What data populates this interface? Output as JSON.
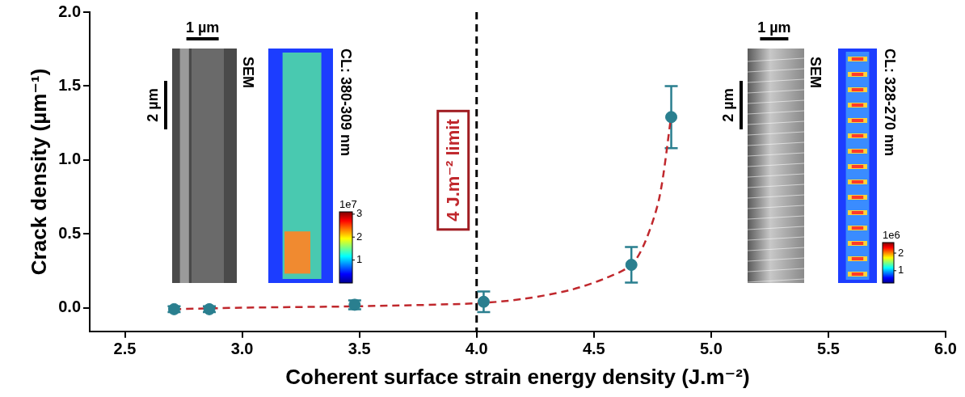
{
  "chart_data": {
    "type": "scatter",
    "x_label": "Coherent surface strain energy density (J.m⁻²)",
    "y_label": "Crack density (µm⁻¹)",
    "xlim": [
      2.35,
      6.0
    ],
    "xticks": [
      2.5,
      {
        "value": 3.0,
        "label": "3.0"
      },
      3.5,
      {
        "value": 4.0,
        "label": "4.0"
      },
      4.5,
      {
        "value": 5.0,
        "label": "5.0"
      },
      5.5,
      {
        "value": 6.0,
        "label": "6.0"
      }
    ],
    "ylim": [
      -0.16,
      2.0
    ],
    "yticks": [
      {
        "value": 0.0,
        "label": "0.0"
      },
      0.5,
      {
        "value": 1.0,
        "label": "1.0"
      },
      1.5,
      {
        "value": 2.0,
        "label": "2.0"
      }
    ],
    "grid": false,
    "series": [
      {
        "type": "scatter",
        "color": "#2a7f8f",
        "marker": "circle",
        "x": [
          2.71,
          2.86,
          3.48,
          4.03,
          4.66,
          4.83
        ],
        "values": [
          -0.01,
          -0.01,
          0.02,
          0.04,
          0.29,
          1.29
        ],
        "y_errors": [
          0.02,
          0.02,
          0.03,
          0.07,
          0.12,
          0.21
        ]
      },
      {
        "type": "line",
        "color": "#c0282d",
        "line_style": "dashed",
        "x": [
          2.71,
          3.0,
          3.5,
          4.0,
          4.2,
          4.4,
          4.55,
          4.66,
          4.72,
          4.78,
          4.83
        ],
        "values": [
          -0.01,
          0.0,
          0.01,
          0.03,
          0.06,
          0.12,
          0.2,
          0.29,
          0.45,
          0.75,
          1.3
        ]
      }
    ],
    "vlines": [
      {
        "x": 4.0,
        "color": "#000000",
        "line_style": "dashed"
      }
    ],
    "annotations": [
      {
        "text": "4 J.m⁻² limit",
        "x": 3.9,
        "y": 0.93,
        "color": "#c0282d"
      }
    ],
    "insets": [
      {
        "scale_x": "1 µm",
        "scale_y": "2 µm",
        "image_label": "SEM",
        "map_label": "CL: 380-309 nm",
        "colorbar": {
          "exponent": "1e7",
          "range": [
            0,
            3.1
          ],
          "ticks": [
            1,
            2,
            3
          ]
        }
      },
      {
        "scale_x": "1 µm",
        "scale_y": "2 µm",
        "image_label": "SEM",
        "map_label": "CL: 328-270 nm",
        "colorbar": {
          "exponent": "1e6",
          "range": [
            0.3,
            2.6
          ],
          "ticks": [
            1,
            2
          ]
        }
      }
    ]
  }
}
